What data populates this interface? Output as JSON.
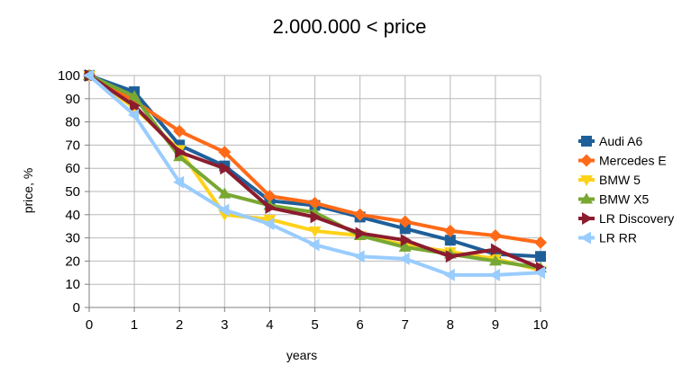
{
  "chart_data": {
    "type": "line",
    "title": "2.000.000 < price",
    "xlabel": "years",
    "ylabel": "price, %",
    "x": [
      0,
      1,
      2,
      3,
      4,
      5,
      6,
      7,
      8,
      9,
      10
    ],
    "xlim": [
      0,
      10
    ],
    "ylim": [
      0,
      100
    ],
    "y_ticks": [
      0,
      10,
      20,
      30,
      40,
      50,
      60,
      70,
      80,
      90,
      100
    ],
    "grid": true,
    "legend_position": "right",
    "series": [
      {
        "name": "Audi A6",
        "color": "#1f5f99",
        "marker": "square",
        "values": [
          100,
          93,
          70,
          61,
          46,
          44,
          39,
          34,
          29,
          23,
          22
        ]
      },
      {
        "name": "Mercedes E",
        "color": "#ff6a18",
        "marker": "diamond",
        "values": [
          100,
          89,
          76,
          67,
          48,
          45,
          40,
          37,
          33,
          31,
          28
        ]
      },
      {
        "name": "BMW 5",
        "color": "#ffd21a",
        "marker": "triangle-down",
        "values": [
          100,
          86,
          68,
          40,
          38,
          33,
          31,
          27,
          24,
          21,
          16
        ]
      },
      {
        "name": "BMW X5",
        "color": "#78a832",
        "marker": "triangle-up",
        "values": [
          100,
          91,
          65,
          49,
          44,
          41,
          31,
          26,
          23,
          20,
          17
        ]
      },
      {
        "name": "LR  Discovery",
        "color": "#8b1c2e",
        "marker": "triangle-right",
        "values": [
          100,
          87,
          67,
          60,
          43,
          39,
          32,
          29,
          22,
          25,
          17
        ]
      },
      {
        "name": "LR RR",
        "color": "#99ccff",
        "marker": "triangle-left",
        "values": [
          100,
          83,
          54,
          42,
          36,
          27,
          22,
          21,
          14,
          14,
          15
        ]
      }
    ]
  }
}
